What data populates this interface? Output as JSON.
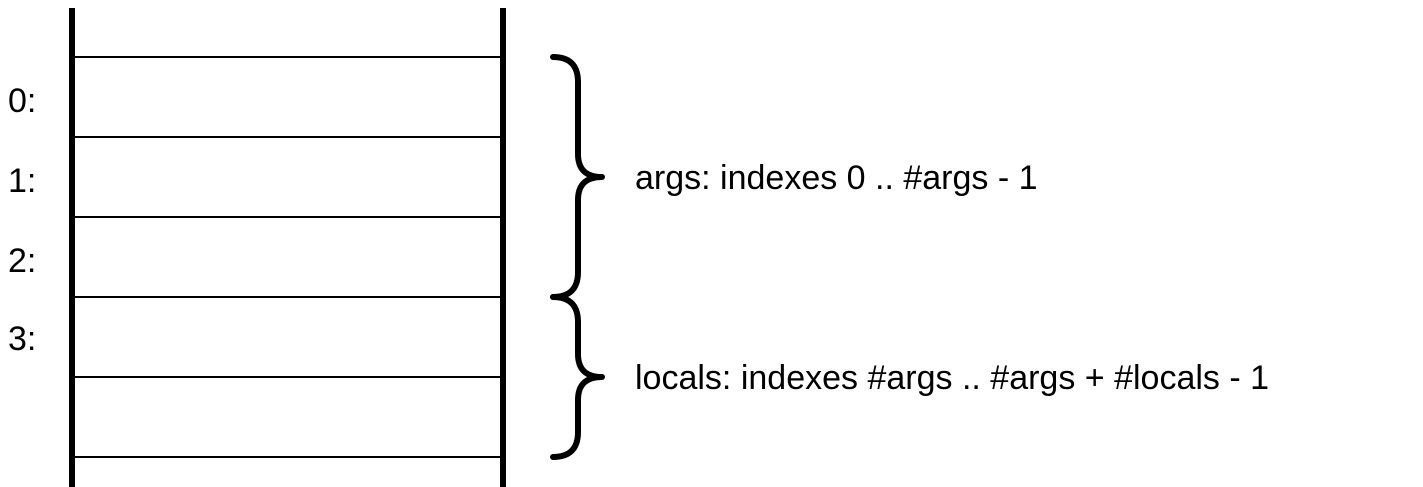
{
  "slots": [
    {
      "label": "0:"
    },
    {
      "label": "1:"
    },
    {
      "label": "2:"
    },
    {
      "label": "3:"
    },
    {
      "label": ""
    }
  ],
  "groups": [
    {
      "label": "args: indexes 0 .. #args - 1"
    },
    {
      "label": "locals: indexes #args .. #args + #locals - 1"
    }
  ],
  "colors": {
    "line": "#000000",
    "background": "#ffffff"
  }
}
